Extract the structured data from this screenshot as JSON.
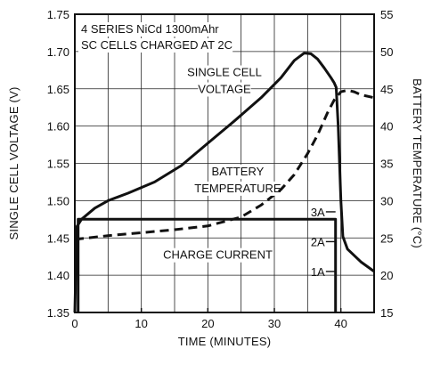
{
  "chart_data": {
    "type": "line",
    "title_lines": [
      "4 SERIES NiCd 1300mAhr",
      "SC CELLS CHARGED AT 2C"
    ],
    "xlabel": "TIME (MINUTES)",
    "ylabel_left": "SINGLE CELL VOLTAGE (V)",
    "ylabel_right": "BATTERY TEMPERATURE (°C)",
    "xlim": [
      0,
      45
    ],
    "ylim_left": [
      1.35,
      1.75
    ],
    "ylim_right": [
      15,
      55
    ],
    "grid": true,
    "x_ticks": [
      0,
      10,
      20,
      30,
      40
    ],
    "x_tick_labels": [
      "0",
      "10",
      "20",
      "30",
      "40"
    ],
    "y_left_ticks": [
      1.35,
      1.4,
      1.45,
      1.5,
      1.55,
      1.6,
      1.65,
      1.7,
      1.75
    ],
    "y_left_tick_labels": [
      "1.35",
      "1.40",
      "1.45",
      "1.50",
      "1.55",
      "1.60",
      "1.65",
      "1.70",
      "1.75"
    ],
    "y_right_ticks": [
      15,
      20,
      25,
      30,
      35,
      40,
      45,
      50,
      55
    ],
    "y_right_tick_labels": [
      "15",
      "20",
      "25",
      "30",
      "35",
      "40",
      "45",
      "50",
      "55"
    ],
    "current_ticks": [
      {
        "label": "3A",
        "volts": 1.485
      },
      {
        "label": "2A",
        "volts": 1.445
      },
      {
        "label": "1A",
        "volts": 1.405
      }
    ],
    "series": [
      {
        "key": "voltage",
        "label_lines": [
          "SINGLE CELL",
          "VOLTAGE"
        ],
        "style": "solid",
        "axis": "left",
        "x": [
          0,
          0.3,
          1,
          3,
          5,
          8,
          12,
          16,
          20,
          24,
          28,
          31,
          33,
          34.5,
          35.5,
          36.5,
          37.5,
          38.5,
          39,
          39.3,
          39.6,
          40,
          40.3,
          41,
          43,
          45
        ],
        "y": [
          1.35,
          1.465,
          1.475,
          1.49,
          1.5,
          1.51,
          1.525,
          1.547,
          1.577,
          1.607,
          1.638,
          1.665,
          1.688,
          1.698,
          1.697,
          1.69,
          1.678,
          1.665,
          1.658,
          1.652,
          1.6,
          1.5,
          1.452,
          1.435,
          1.418,
          1.405
        ]
      },
      {
        "key": "temperature",
        "label_lines": [
          "BATTERY",
          "TEMPERATURE"
        ],
        "style": "dashed",
        "axis": "right",
        "x": [
          0,
          5,
          10,
          15,
          20,
          25,
          28,
          31,
          33,
          35,
          36.5,
          38,
          39,
          40,
          41,
          42,
          43,
          45
        ],
        "y": [
          24.8,
          25.3,
          25.7,
          26.1,
          26.6,
          27.8,
          29.4,
          31.5,
          33.5,
          36.3,
          38.8,
          41.8,
          43.5,
          44.6,
          44.8,
          44.6,
          44.2,
          43.8
        ]
      },
      {
        "key": "current",
        "label_lines": [
          "CHARGE CURRENT"
        ],
        "style": "solid",
        "axis": "left",
        "x": [
          0.5,
          0.5,
          39.2,
          39.2
        ],
        "y": [
          1.35,
          1.475,
          1.475,
          1.35
        ]
      }
    ]
  }
}
